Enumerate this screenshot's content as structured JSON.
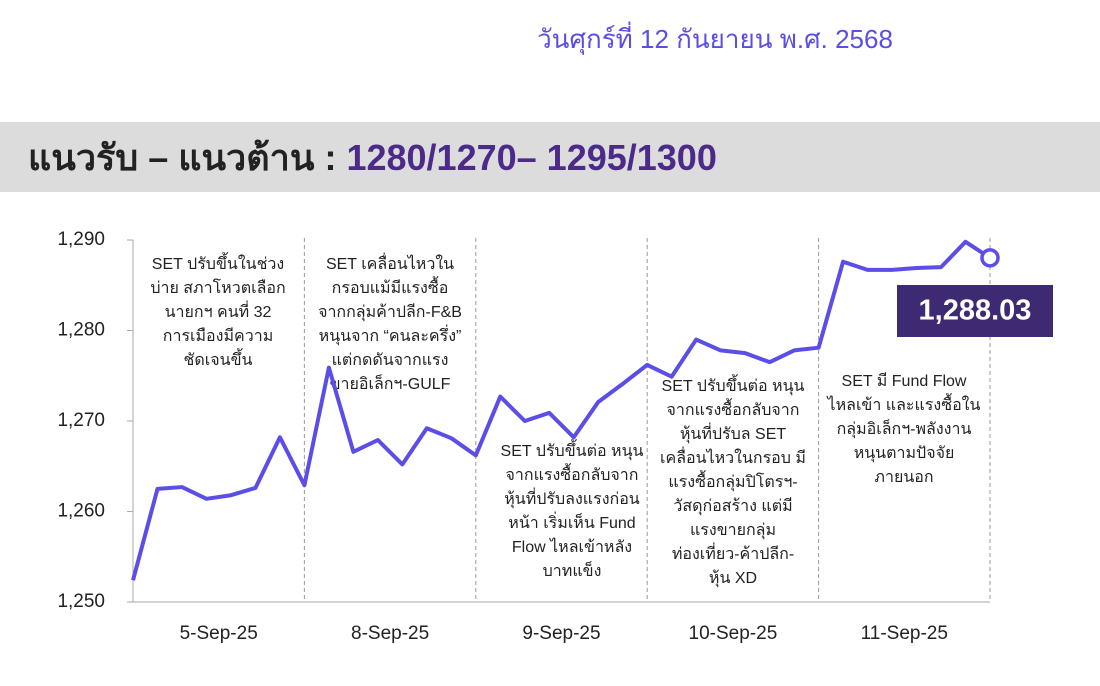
{
  "date": "วันศุกร์ที่ 12 กันยายน พ.ศ. 2568",
  "header": {
    "title": "แนวรับ – แนวต้าน : ",
    "levels": "1280/1270– 1295/1300"
  },
  "chart_data": {
    "type": "line",
    "color": "#5b4de8",
    "days": [
      "5-Sep-25",
      "8-Sep-25",
      "9-Sep-25",
      "10-Sep-25",
      "11-Sep-25"
    ],
    "values": [
      1252.4,
      1262.5,
      1262.7,
      1261.4,
      1261.8,
      1262.6,
      1268.2,
      1262.9,
      1275.9,
      1266.6,
      1267.9,
      1265.2,
      1269.2,
      1268.1,
      1266.2,
      1272.7,
      1270.0,
      1270.9,
      1268.2,
      1272.1,
      1274.1,
      1276.2,
      1274.9,
      1279.0,
      1277.8,
      1277.5,
      1276.5,
      1277.8,
      1278.1,
      1287.6,
      1286.7,
      1286.7,
      1286.9,
      1287.0,
      1289.8,
      1288.03
    ],
    "value_labels": [
      null,
      null,
      null,
      null,
      null,
      null,
      null,
      null,
      null,
      null,
      null,
      null,
      null,
      null,
      null,
      null,
      null,
      null,
      null,
      null,
      null,
      null,
      null,
      null,
      null,
      null,
      null,
      null,
      null,
      null,
      null,
      null,
      null,
      null,
      null,
      "1,288.03"
    ],
    "ylim": [
      1250,
      1290
    ],
    "yticks": [
      {
        "value": 1250,
        "label": "1,250"
      },
      {
        "value": 1260,
        "label": "1,260"
      },
      {
        "value": 1270,
        "label": "1,270"
      },
      {
        "value": 1280,
        "label": "1,280"
      },
      {
        "value": 1290,
        "label": "1,290"
      }
    ],
    "notes": [
      [
        "SET ปรับขึ้นในช่วง",
        "บ่าย สภาโหวตเลือก",
        "นายกฯ คนที่ 32",
        "การเมืองมีความ",
        "ชัดเจนขึ้น"
      ],
      [
        "SET เคลื่อนไหวใน",
        "กรอบแม้มีแรงซื้อ",
        "จากกลุ่มค้าปลีก-F&B",
        "หนุนจาก “คนละครึ่ง”",
        "แต่กดดันจากแรง",
        "ขายอิเล็กฯ-GULF"
      ],
      [
        "SET ปรับขึ้นต่อ หนุน",
        "จากแรงซื้อกลับจาก",
        "หุ้นที่ปรับลงแรงก่อน",
        "หน้า เริ่มเห็น Fund",
        "Flow ไหลเข้าหลัง",
        "บาทแข็ง"
      ],
      [
        "SET ปรับขึ้นต่อ หนุน",
        "จากแรงซื้อกลับจาก",
        "หุ้นที่ปรับล SET",
        "เคลื่อนไหวในกรอบ มี",
        "แรงซื้อกลุ่มปิโตรฯ-",
        "วัสดุก่อสร้าง แต่มี",
        "แรงขายกลุ่ม",
        "ท่องเที่ยว-ค้าปลีก-",
        "หุ้น XD"
      ],
      [
        "SET มี Fund Flow",
        "ไหลเข้า และแรงซื้อใน",
        "กลุ่มอิเล็กฯ-พลังงาน",
        "หนุนตามปัจจัย",
        "ภายนอก"
      ]
    ]
  }
}
